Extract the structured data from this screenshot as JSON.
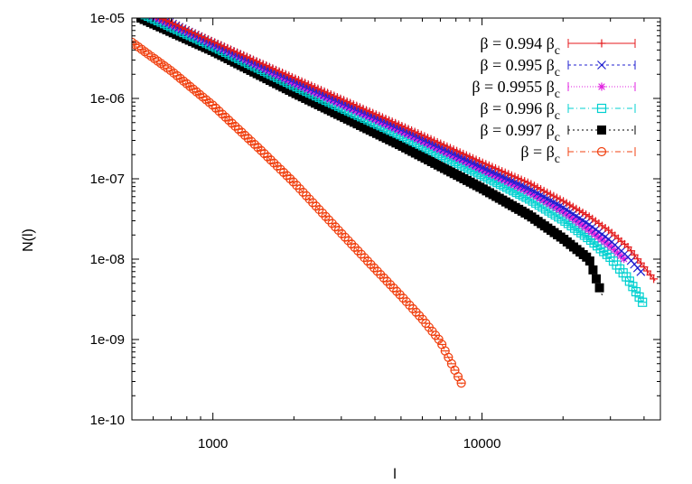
{
  "chart_data": {
    "type": "scatter",
    "title": "",
    "xlabel": "l",
    "ylabel": "N(l)",
    "xscale": "log",
    "yscale": "log",
    "xlim": [
      500,
      46000
    ],
    "ylim": [
      1e-10,
      1e-05
    ],
    "x_ticks": [
      {
        "value": 1000,
        "label": "1000"
      },
      {
        "value": 10000,
        "label": "10000"
      }
    ],
    "y_ticks": [
      {
        "value": 1e-05,
        "label": "1e-05"
      },
      {
        "value": 1e-06,
        "label": "1e-06"
      },
      {
        "value": 1e-07,
        "label": "1e-07"
      },
      {
        "value": 1e-08,
        "label": "1e-08"
      },
      {
        "value": 1e-09,
        "label": "1e-09"
      },
      {
        "value": 1e-10,
        "label": "1e-10"
      }
    ],
    "grid": false,
    "legend_position": "top-right",
    "series": [
      {
        "name": "β = 0.994 β_c",
        "legend_text": "β = 0.994 β",
        "legend_sub": "c",
        "color": "#e41a1c",
        "marker": "plus",
        "dash": "",
        "points": [
          [
            600,
            1.1e-05
          ],
          [
            1000,
            5.1e-06
          ],
          [
            2000,
            1.8e-06
          ],
          [
            5000,
            4.6e-07
          ],
          [
            10000,
            1.6e-07
          ],
          [
            15000,
            8.8e-08
          ],
          [
            20000,
            5.3e-08
          ],
          [
            25000,
            3.4e-08
          ],
          [
            30000,
            2.2e-08
          ],
          [
            35000,
            1.4e-08
          ],
          [
            40000,
            8e-09
          ],
          [
            44000,
            5.4e-09
          ]
        ]
      },
      {
        "name": "β = 0.995 β_c",
        "legend_text": "β = 0.995 β",
        "legend_sub": "c",
        "color": "#2020d0",
        "marker": "x",
        "dash": "3,3",
        "points": [
          [
            600,
            1.1e-05
          ],
          [
            1000,
            4.8e-06
          ],
          [
            2000,
            1.65e-06
          ],
          [
            5000,
            4.2e-07
          ],
          [
            10000,
            1.4e-07
          ],
          [
            15000,
            7.5e-08
          ],
          [
            20000,
            4.4e-08
          ],
          [
            25000,
            2.7e-08
          ],
          [
            30000,
            1.7e-08
          ],
          [
            35000,
            1.05e-08
          ],
          [
            40000,
            6.3e-09
          ]
        ]
      },
      {
        "name": "β = 0.9955 β_c",
        "legend_text": "β = 0.9955 β",
        "legend_sub": "c",
        "color": "#e020e0",
        "marker": "star",
        "dash": "1,2",
        "points": [
          [
            580,
            1.1e-05
          ],
          [
            1000,
            4.7e-06
          ],
          [
            2000,
            1.55e-06
          ],
          [
            5000,
            3.9e-07
          ],
          [
            10000,
            1.3e-07
          ],
          [
            15000,
            6.8e-08
          ],
          [
            20000,
            3.9e-08
          ],
          [
            25000,
            2.3e-08
          ],
          [
            30000,
            1.45e-08
          ],
          [
            34000,
            9.8e-09
          ]
        ]
      },
      {
        "name": "β = 0.996 β_c",
        "legend_text": "β = 0.996 β",
        "legend_sub": "c",
        "color": "#00d0d0",
        "marker": "square",
        "dash": "6,3,1,3",
        "points": [
          [
            560,
            1.1e-05
          ],
          [
            1000,
            4.5e-06
          ],
          [
            2000,
            1.45e-06
          ],
          [
            5000,
            3.5e-07
          ],
          [
            10000,
            1.12e-07
          ],
          [
            15000,
            5.6e-08
          ],
          [
            20000,
            3.1e-08
          ],
          [
            25000,
            1.8e-08
          ],
          [
            30000,
            1.05e-08
          ],
          [
            35000,
            5.6e-09
          ],
          [
            40000,
            2.7e-09
          ]
        ]
      },
      {
        "name": "β = 0.997 β_c",
        "legend_text": "β = 0.997 β",
        "legend_sub": "c",
        "color": "#000000",
        "marker": "filled-square",
        "dash": "2,3",
        "points": [
          [
            540,
            1e-05
          ],
          [
            1000,
            3.9e-06
          ],
          [
            2000,
            1.18e-06
          ],
          [
            5000,
            2.6e-07
          ],
          [
            10000,
            7.6e-08
          ],
          [
            15000,
            3.5e-08
          ],
          [
            20000,
            1.8e-08
          ],
          [
            25000,
            1e-08
          ],
          [
            28000,
            3.5e-09
          ]
        ]
      },
      {
        "name": "β = β_c",
        "legend_text": "β = β",
        "legend_sub": "c",
        "color": "#f04010",
        "marker": "circle",
        "dash": "6,3,1,3",
        "points": [
          [
            500,
            5e-06
          ],
          [
            700,
            2.2e-06
          ],
          [
            1000,
            8.2e-07
          ],
          [
            1500,
            2.3e-07
          ],
          [
            2000,
            9e-08
          ],
          [
            3000,
            2.1e-08
          ],
          [
            4000,
            7.6e-09
          ],
          [
            5000,
            3.5e-09
          ],
          [
            6000,
            1.8e-09
          ],
          [
            7000,
            9.5e-10
          ],
          [
            8500,
            2.6e-10
          ]
        ]
      }
    ]
  }
}
